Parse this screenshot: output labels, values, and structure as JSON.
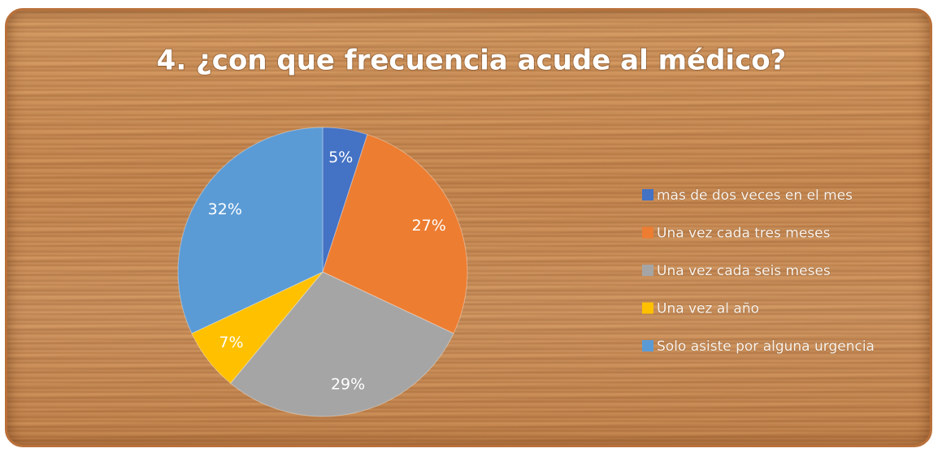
{
  "chart_data": {
    "type": "pie",
    "title": "4. ¿con que frecuencia acude al médico?",
    "categories": [
      "mas de dos veces en el mes",
      "Una vez cada tres meses",
      "Una vez cada seis meses",
      "Una vez al año",
      "Solo asiste por alguna urgencia"
    ],
    "values": [
      5,
      27,
      29,
      7,
      32
    ],
    "value_labels": [
      "5%",
      "27%",
      "29%",
      "7%",
      "32%"
    ],
    "colors": [
      "#4472c4",
      "#ed7d31",
      "#a5a5a5",
      "#ffc000",
      "#5b9bd5"
    ],
    "legend": "right"
  }
}
